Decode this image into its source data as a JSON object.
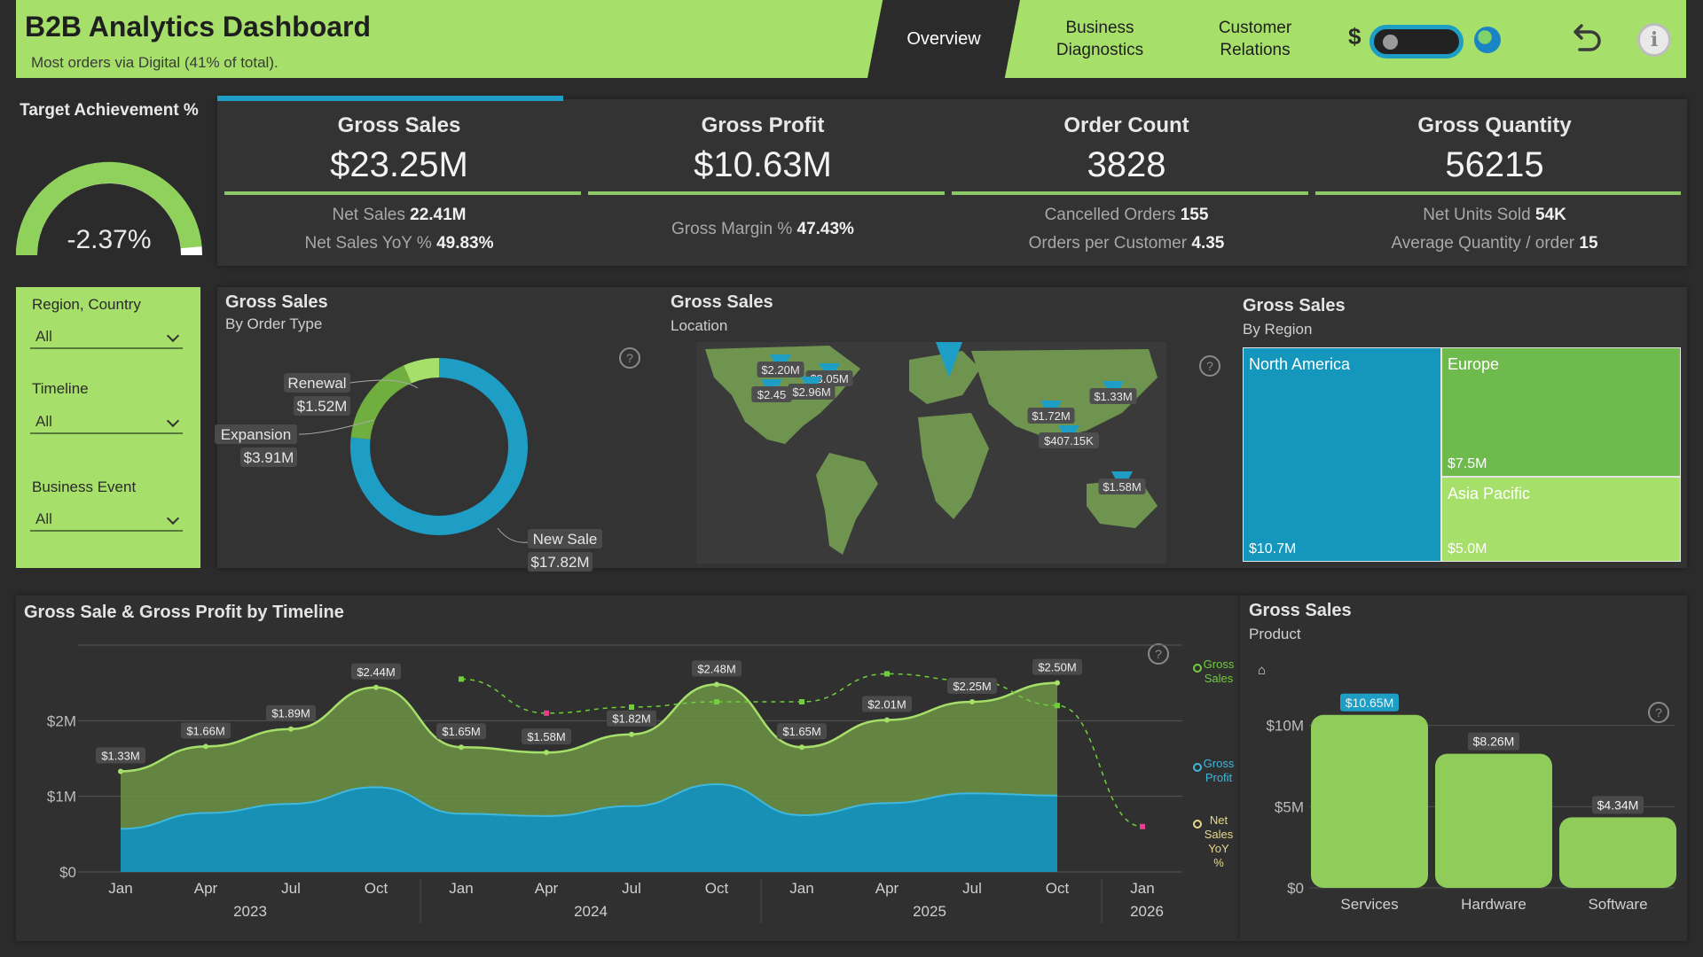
{
  "header": {
    "title": "B2B Analytics Dashboard",
    "subtitle": "Most orders via Digital (41% of total).",
    "tabs": [
      {
        "label": "Overview"
      },
      {
        "label": "Business\nDiagnostics"
      },
      {
        "label": "Customer\nRelations"
      }
    ],
    "currency_symbol": "$",
    "icons": [
      "globe-icon",
      "undo-icon",
      "info-icon"
    ]
  },
  "target": {
    "title": "Target Achievement %",
    "value": "-2.37%",
    "fill_fraction": 0.97
  },
  "kpis": [
    {
      "title": "Gross Sales",
      "value": "$23.25M",
      "subs": [
        {
          "label": "Net Sales",
          "value": "22.41M"
        },
        {
          "label": "Net Sales YoY %",
          "value": "49.83%"
        }
      ]
    },
    {
      "title": "Gross Profit",
      "value": "$10.63M",
      "subs": [
        {
          "label": "Gross Margin %",
          "value": "47.43%"
        }
      ]
    },
    {
      "title": "Order Count",
      "value": "3828",
      "subs": [
        {
          "label": "Cancelled Orders",
          "value": "155"
        },
        {
          "label": "Orders per Customer",
          "value": "4.35"
        }
      ]
    },
    {
      "title": "Gross Quantity",
      "value": "56215",
      "subs": [
        {
          "label": "Net Units Sold",
          "value": "54K"
        },
        {
          "label": "Average Quantity / order",
          "value": "15"
        }
      ]
    }
  ],
  "filters": [
    {
      "label": "Region, Country",
      "value": "All"
    },
    {
      "label": "Timeline",
      "value": "All"
    },
    {
      "label": "Business Event",
      "value": "All"
    }
  ],
  "colors": {
    "green": "#a6e06a",
    "mid_green": "#6fae3f",
    "blue": "#1e9ec4",
    "pink": "#e83e8c",
    "panel": "#333333"
  },
  "donut": {
    "title": "Gross Sales",
    "subtitle": "By Order Type",
    "chart_data": {
      "type": "pie",
      "slices": [
        {
          "name": "New Sale",
          "value": 17.82,
          "label": "$17.82M",
          "color": "#1e9ec4"
        },
        {
          "name": "Expansion",
          "value": 3.91,
          "label": "$3.91M",
          "color": "#6fae3f"
        },
        {
          "name": "Renewal",
          "value": 1.52,
          "label": "$1.52M",
          "color": "#a6e06a"
        }
      ]
    }
  },
  "map": {
    "title": "Gross Sales",
    "subtitle": "Location",
    "labels": [
      "$2.20M",
      "$3.05M",
      "$2.45",
      "$2.96M",
      "$1.33M",
      "$1.72M",
      "$407.15K",
      "$1.58M"
    ]
  },
  "treemap": {
    "title": "Gross Sales",
    "subtitle": "By Region",
    "chart_data": {
      "type": "treemap",
      "items": [
        {
          "name": "North America",
          "label": "$10.7M",
          "value": 10.7
        },
        {
          "name": "Europe",
          "label": "$7.5M",
          "value": 7.5
        },
        {
          "name": "Asia Pacific",
          "label": "$5.0M",
          "value": 5.0
        }
      ]
    }
  },
  "timeline": {
    "title": "Gross Sale & Gross Profit by Timeline",
    "chart_data": {
      "type": "area",
      "x": [
        "2023-01",
        "2023-04",
        "2023-07",
        "2023-10",
        "2024-01",
        "2024-04",
        "2024-07",
        "2024-10",
        "2025-01",
        "2025-04",
        "2025-07",
        "2025-10"
      ],
      "series": [
        {
          "name": "Gross Sales",
          "values": [
            1.33,
            1.66,
            1.89,
            2.44,
            1.65,
            1.58,
            1.82,
            2.48,
            1.65,
            2.01,
            2.25,
            2.5
          ],
          "labels": [
            "$1.33M",
            "$1.66M",
            "$1.89M",
            "$2.44M",
            "$1.65M",
            "$1.58M",
            "$1.82M",
            "$2.48M",
            "$1.65M",
            "$2.01M",
            "$2.25M",
            "$2.50M"
          ]
        },
        {
          "name": "Gross Profit",
          "values": [
            0.57,
            0.78,
            0.9,
            1.12,
            0.77,
            0.74,
            0.87,
            1.16,
            0.75,
            0.91,
            1.04,
            1.01
          ]
        }
      ],
      "yoy_points": [
        {
          "x": "2024-01",
          "y": 2.55,
          "color": "#6fcf3a"
        },
        {
          "x": "2024-04",
          "y": 2.1,
          "color": "#e83e8c"
        },
        {
          "x": "2024-07",
          "y": 2.18,
          "color": "#6fcf3a"
        },
        {
          "x": "2024-10",
          "y": 2.25,
          "color": "#6fcf3a"
        },
        {
          "x": "2025-01",
          "y": 2.25,
          "color": "#6fcf3a"
        },
        {
          "x": "2025-04",
          "y": 2.62,
          "color": "#6fcf3a"
        },
        {
          "x": "2025-07",
          "y": 2.53,
          "color": "#6fcf3a"
        },
        {
          "x": "2025-10",
          "y": 2.2,
          "color": "#6fcf3a"
        },
        {
          "x": "2026-01",
          "y": 0.6,
          "color": "#e83e8c"
        }
      ],
      "x_ticks": [
        "Jan",
        "Apr",
        "Jul",
        "Oct",
        "Jan",
        "Apr",
        "Jul",
        "Oct",
        "Jan",
        "Apr",
        "Jul",
        "Oct",
        "Jan"
      ],
      "years": [
        "2023",
        "2024",
        "2025",
        "2026"
      ],
      "y_ticks": [
        "$0",
        "$1M",
        "$2M"
      ],
      "ylim": [
        0,
        3
      ],
      "legend": [
        "Gross Sales",
        "Gross Profit",
        "Net Sales YoY %"
      ]
    }
  },
  "product": {
    "title": "Gross Sales",
    "subtitle": "Product",
    "chart_data": {
      "type": "bar",
      "categories": [
        "Services",
        "Hardware",
        "Software"
      ],
      "values": [
        10.65,
        8.26,
        4.34
      ],
      "labels": [
        "$10.65M",
        "$8.26M",
        "$4.34M"
      ],
      "y_ticks": [
        "$0",
        "$5M",
        "$10M"
      ],
      "ylim": [
        0,
        12
      ]
    }
  }
}
